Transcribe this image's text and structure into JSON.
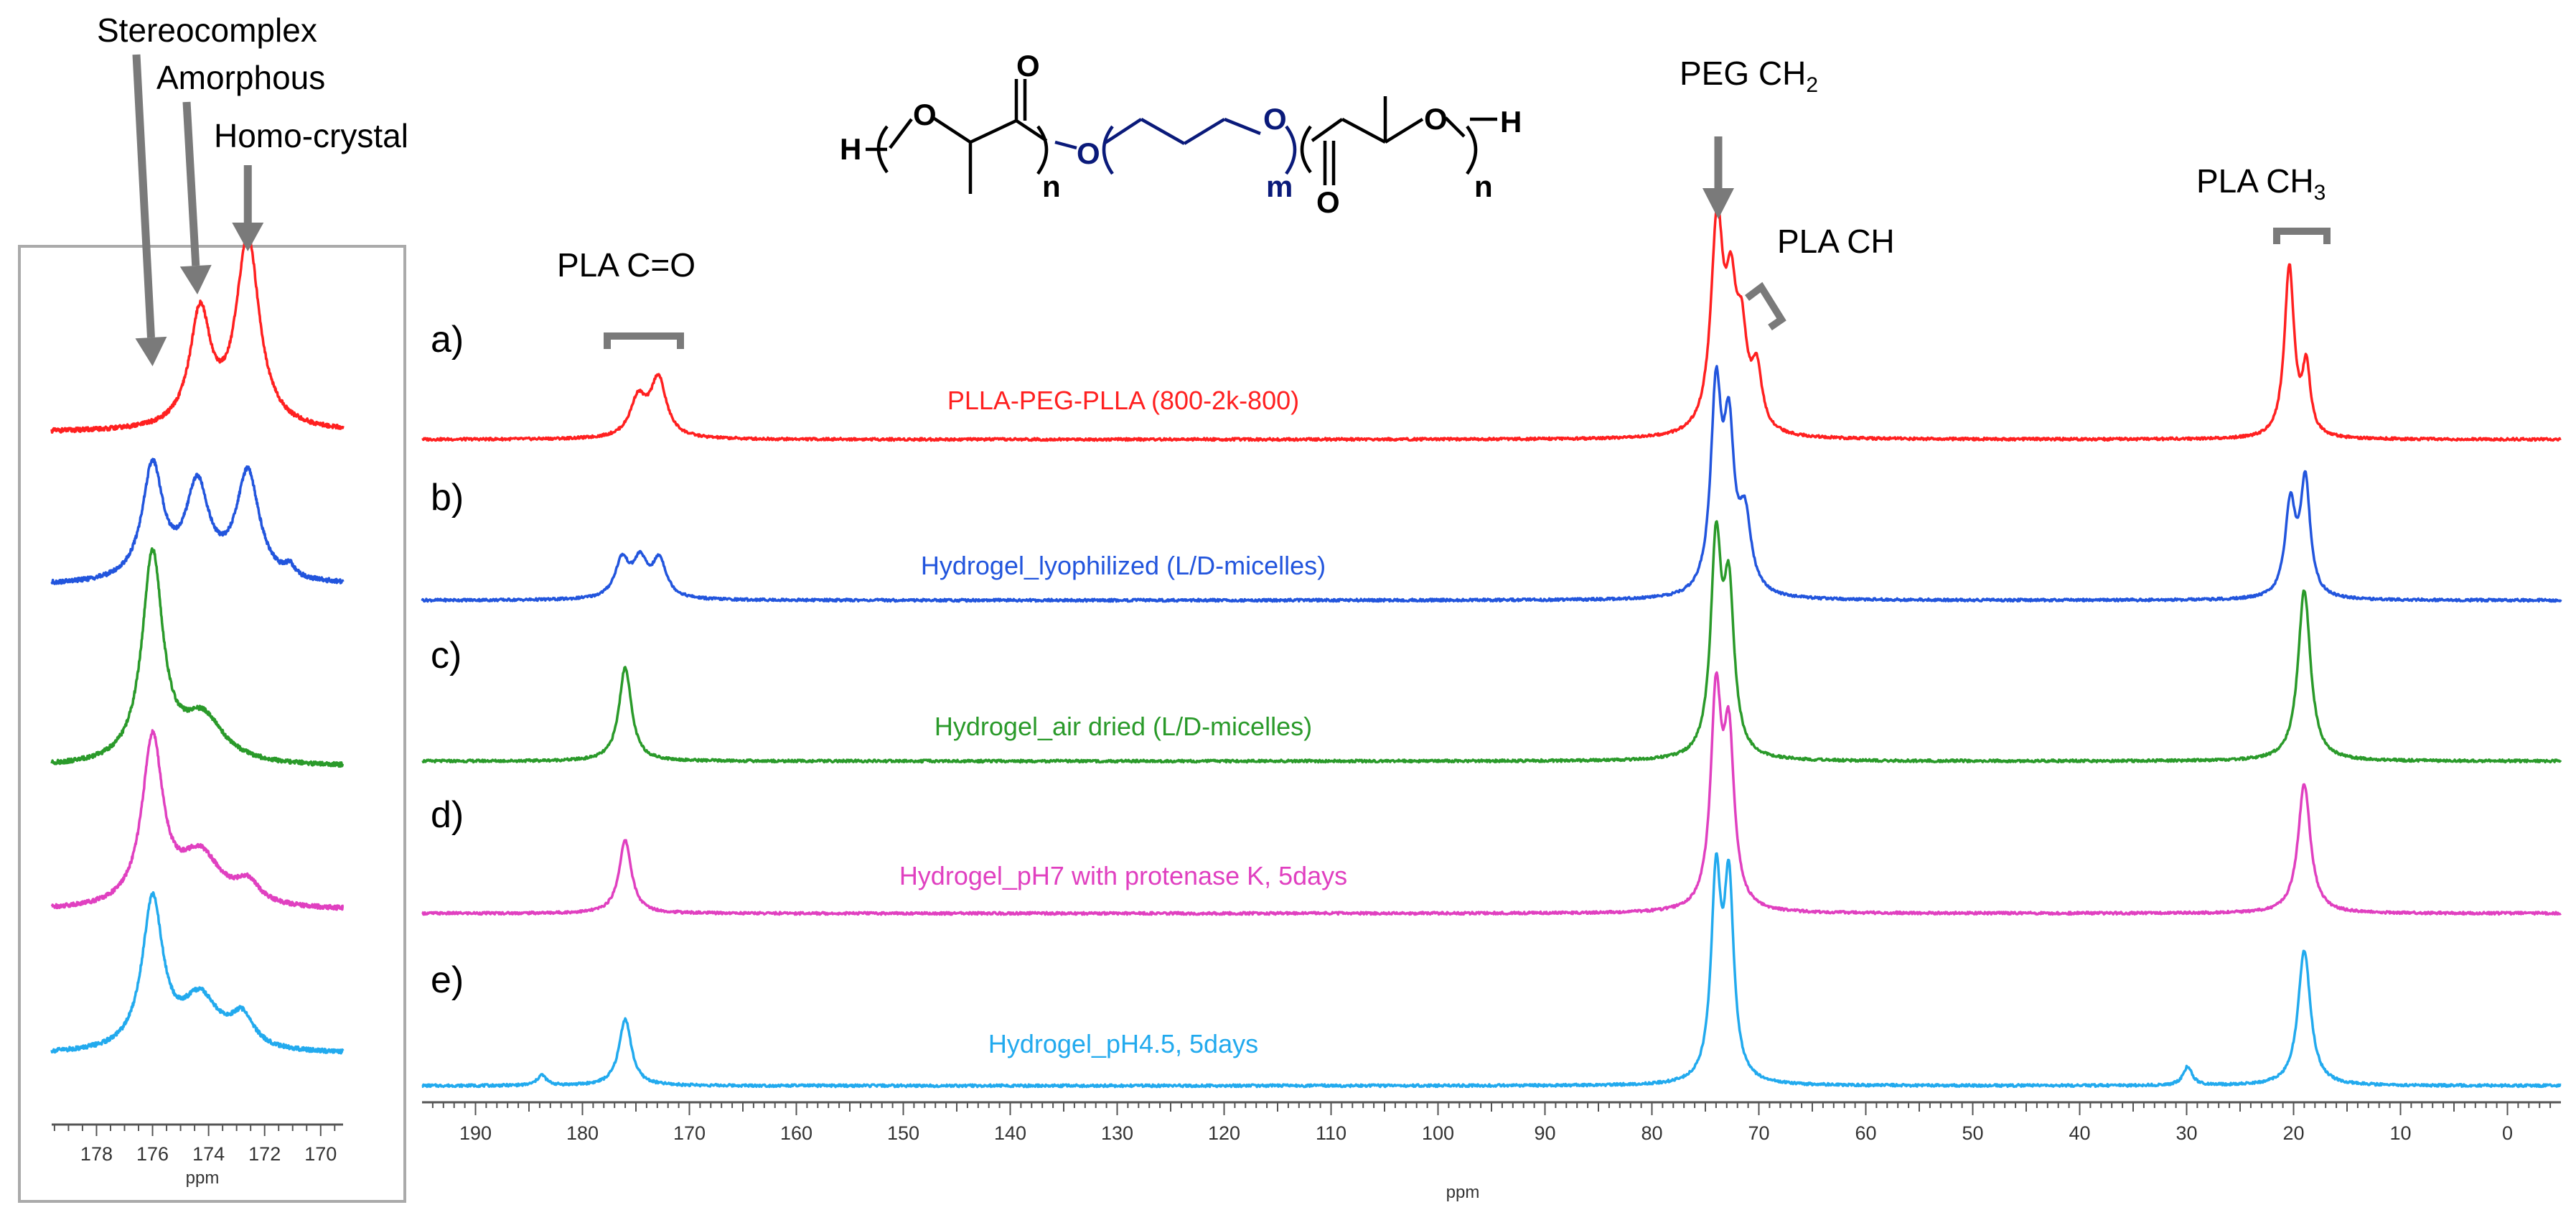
{
  "chart_data": [
    {
      "type": "line",
      "title": "",
      "xlabel": "ppm",
      "ylabel": "",
      "xlim": [
        195,
        -5
      ],
      "x_reversed": true,
      "grid": false,
      "legend": "none",
      "x_ticks": [
        "190",
        "180",
        "170",
        "160",
        "150",
        "140",
        "130",
        "120",
        "110",
        "100",
        "90",
        "80",
        "70",
        "60",
        "50",
        "40",
        "30",
        "20",
        "10",
        "0"
      ],
      "panel_letters": [
        "a)",
        "b)",
        "c)",
        "d)",
        "e)"
      ],
      "series": [
        {
          "name": "PLLA-PEG-PLLA (800-2k-800)",
          "color": "#ff2020",
          "peaks": [
            {
              "ppm": 174.8,
              "height": 0.18,
              "width": 0.9
            },
            {
              "ppm": 172.9,
              "height": 0.28,
              "width": 0.9
            },
            {
              "ppm": 73.9,
              "height": 1.0,
              "width": 0.7
            },
            {
              "ppm": 72.6,
              "height": 0.55,
              "width": 0.6
            },
            {
              "ppm": 71.6,
              "height": 0.4,
              "width": 0.6
            },
            {
              "ppm": 70.2,
              "height": 0.28,
              "width": 0.6
            },
            {
              "ppm": 20.4,
              "height": 0.82,
              "width": 0.55
            },
            {
              "ppm": 18.8,
              "height": 0.32,
              "width": 0.45
            }
          ]
        },
        {
          "name": "Hydrogel_lyophilized (L/D-micelles)",
          "color": "#2255dd",
          "peaks": [
            {
              "ppm": 176.3,
              "height": 0.18,
              "width": 0.8
            },
            {
              "ppm": 174.6,
              "height": 0.17,
              "width": 0.8
            },
            {
              "ppm": 172.8,
              "height": 0.18,
              "width": 0.8
            },
            {
              "ppm": 74.0,
              "height": 0.95,
              "width": 0.6
            },
            {
              "ppm": 72.8,
              "height": 0.72,
              "width": 0.6
            },
            {
              "ppm": 71.3,
              "height": 0.35,
              "width": 0.7
            },
            {
              "ppm": 20.3,
              "height": 0.44,
              "width": 0.6
            },
            {
              "ppm": 18.9,
              "height": 0.55,
              "width": 0.55
            }
          ]
        },
        {
          "name": "Hydrogel_air dried (L/D-micelles)",
          "color": "#2a9a2a",
          "peaks": [
            {
              "ppm": 176.0,
              "height": 0.45,
              "width": 0.7
            },
            {
              "ppm": 74.0,
              "height": 1.0,
              "width": 0.6
            },
            {
              "ppm": 72.8,
              "height": 0.75,
              "width": 0.6
            },
            {
              "ppm": 19.0,
              "height": 0.82,
              "width": 0.7
            }
          ]
        },
        {
          "name": "Hydrogel_pH7 with protenase K, 5days",
          "color": "#e040c0",
          "peaks": [
            {
              "ppm": 176.0,
              "height": 0.35,
              "width": 0.7
            },
            {
              "ppm": 74.0,
              "height": 1.0,
              "width": 0.6
            },
            {
              "ppm": 72.8,
              "height": 0.78,
              "width": 0.6
            },
            {
              "ppm": 19.0,
              "height": 0.62,
              "width": 0.7
            }
          ]
        },
        {
          "name": "Hydrogel_pH4.5, 5days",
          "color": "#22aaee",
          "peaks": [
            {
              "ppm": 183.8,
              "height": 0.05,
              "width": 0.5
            },
            {
              "ppm": 176.0,
              "height": 0.32,
              "width": 0.7
            },
            {
              "ppm": 74.0,
              "height": 0.95,
              "width": 0.55
            },
            {
              "ppm": 72.8,
              "height": 0.92,
              "width": 0.55
            },
            {
              "ppm": 29.9,
              "height": 0.09,
              "width": 0.5
            },
            {
              "ppm": 19.0,
              "height": 0.65,
              "width": 0.7
            }
          ]
        }
      ],
      "annotations": [
        {
          "text": "PLA C=O",
          "ppm": 175,
          "kind": "bracket"
        },
        {
          "text": "PEG CH",
          "subscript": "2",
          "ppm": 74,
          "kind": "arrow"
        },
        {
          "text": "PLA CH",
          "ppm": 71,
          "kind": "bracket"
        },
        {
          "text": "PLA CH",
          "subscript": "3",
          "ppm": 19.5,
          "kind": "bracket"
        }
      ]
    },
    {
      "type": "line",
      "title": "",
      "xlabel": "ppm",
      "ylabel": "",
      "xlim": [
        179.6,
        169.2
      ],
      "x_reversed": true,
      "grid": false,
      "legend": "none",
      "x_ticks": [
        "178",
        "176",
        "174",
        "172",
        "170"
      ],
      "series": [
        {
          "name": "",
          "color": "#ff2020",
          "peaks": [
            {
              "ppm": 174.3,
              "height": 0.55,
              "width": 0.45
            },
            {
              "ppm": 172.6,
              "height": 0.92,
              "width": 0.5
            }
          ]
        },
        {
          "name": "",
          "color": "#2255dd",
          "peaks": [
            {
              "ppm": 176.0,
              "height": 0.55,
              "width": 0.45
            },
            {
              "ppm": 174.4,
              "height": 0.45,
              "width": 0.5
            },
            {
              "ppm": 172.6,
              "height": 0.52,
              "width": 0.5
            },
            {
              "ppm": 171.1,
              "height": 0.05,
              "width": 0.2
            }
          ]
        },
        {
          "name": "",
          "color": "#2a9a2a",
          "peaks": [
            {
              "ppm": 176.0,
              "height": 1.0,
              "width": 0.45
            },
            {
              "ppm": 174.2,
              "height": 0.22,
              "width": 0.9
            }
          ]
        },
        {
          "name": "",
          "color": "#e040c0",
          "peaks": [
            {
              "ppm": 176.0,
              "height": 0.8,
              "width": 0.45
            },
            {
              "ppm": 174.3,
              "height": 0.25,
              "width": 0.9
            },
            {
              "ppm": 172.6,
              "height": 0.1,
              "width": 0.5
            }
          ]
        },
        {
          "name": "",
          "color": "#22aaee",
          "peaks": [
            {
              "ppm": 176.0,
              "height": 0.72,
              "width": 0.45
            },
            {
              "ppm": 174.3,
              "height": 0.25,
              "width": 0.8
            },
            {
              "ppm": 172.8,
              "height": 0.15,
              "width": 0.5
            }
          ]
        }
      ],
      "annotations": [
        {
          "text": "Stereocomplex",
          "ppm": 176.0
        },
        {
          "text": "Amorphous",
          "ppm": 174.4
        },
        {
          "text": "Homo-crystal",
          "ppm": 172.6
        }
      ]
    }
  ],
  "structure": {
    "h_left": "H",
    "o_labels": [
      "O",
      "O",
      "O",
      "O"
    ],
    "carbonyl_o": [
      "O",
      "O"
    ],
    "h_right": "H",
    "subscripts": [
      "n",
      "m",
      "n"
    ],
    "black": "#000000",
    "blue": "#0a1a7a"
  },
  "colors": {
    "arrow": "#7a7a7a",
    "inset_border": "#aaaaaa",
    "axis": "#555555"
  }
}
